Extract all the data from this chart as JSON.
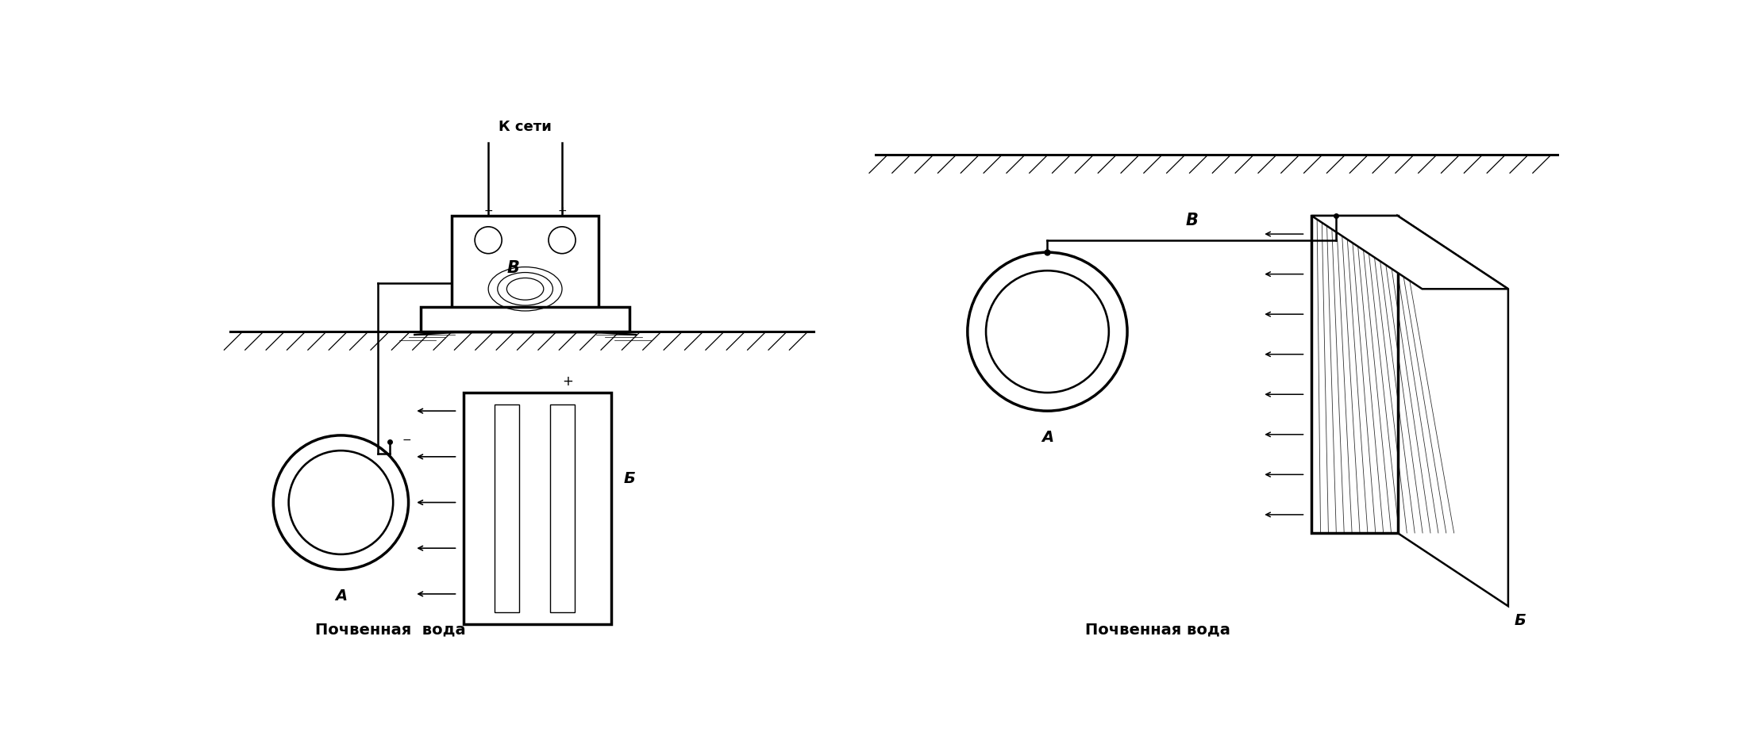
{
  "bg_color": "#ffffff",
  "line_color": "#000000",
  "fig_width": 21.97,
  "fig_height": 9.29,
  "left": {
    "label_k_seti": "К сети",
    "label_B": "В",
    "label_A": "А",
    "label_Б": "Б",
    "label_minus": "−",
    "label_plus": "+",
    "label_bottom": "Почвенная  вода"
  },
  "right": {
    "label_B": "В",
    "label_A": "А",
    "label_Б": "Б",
    "label_bottom": "Почвенная вода"
  }
}
